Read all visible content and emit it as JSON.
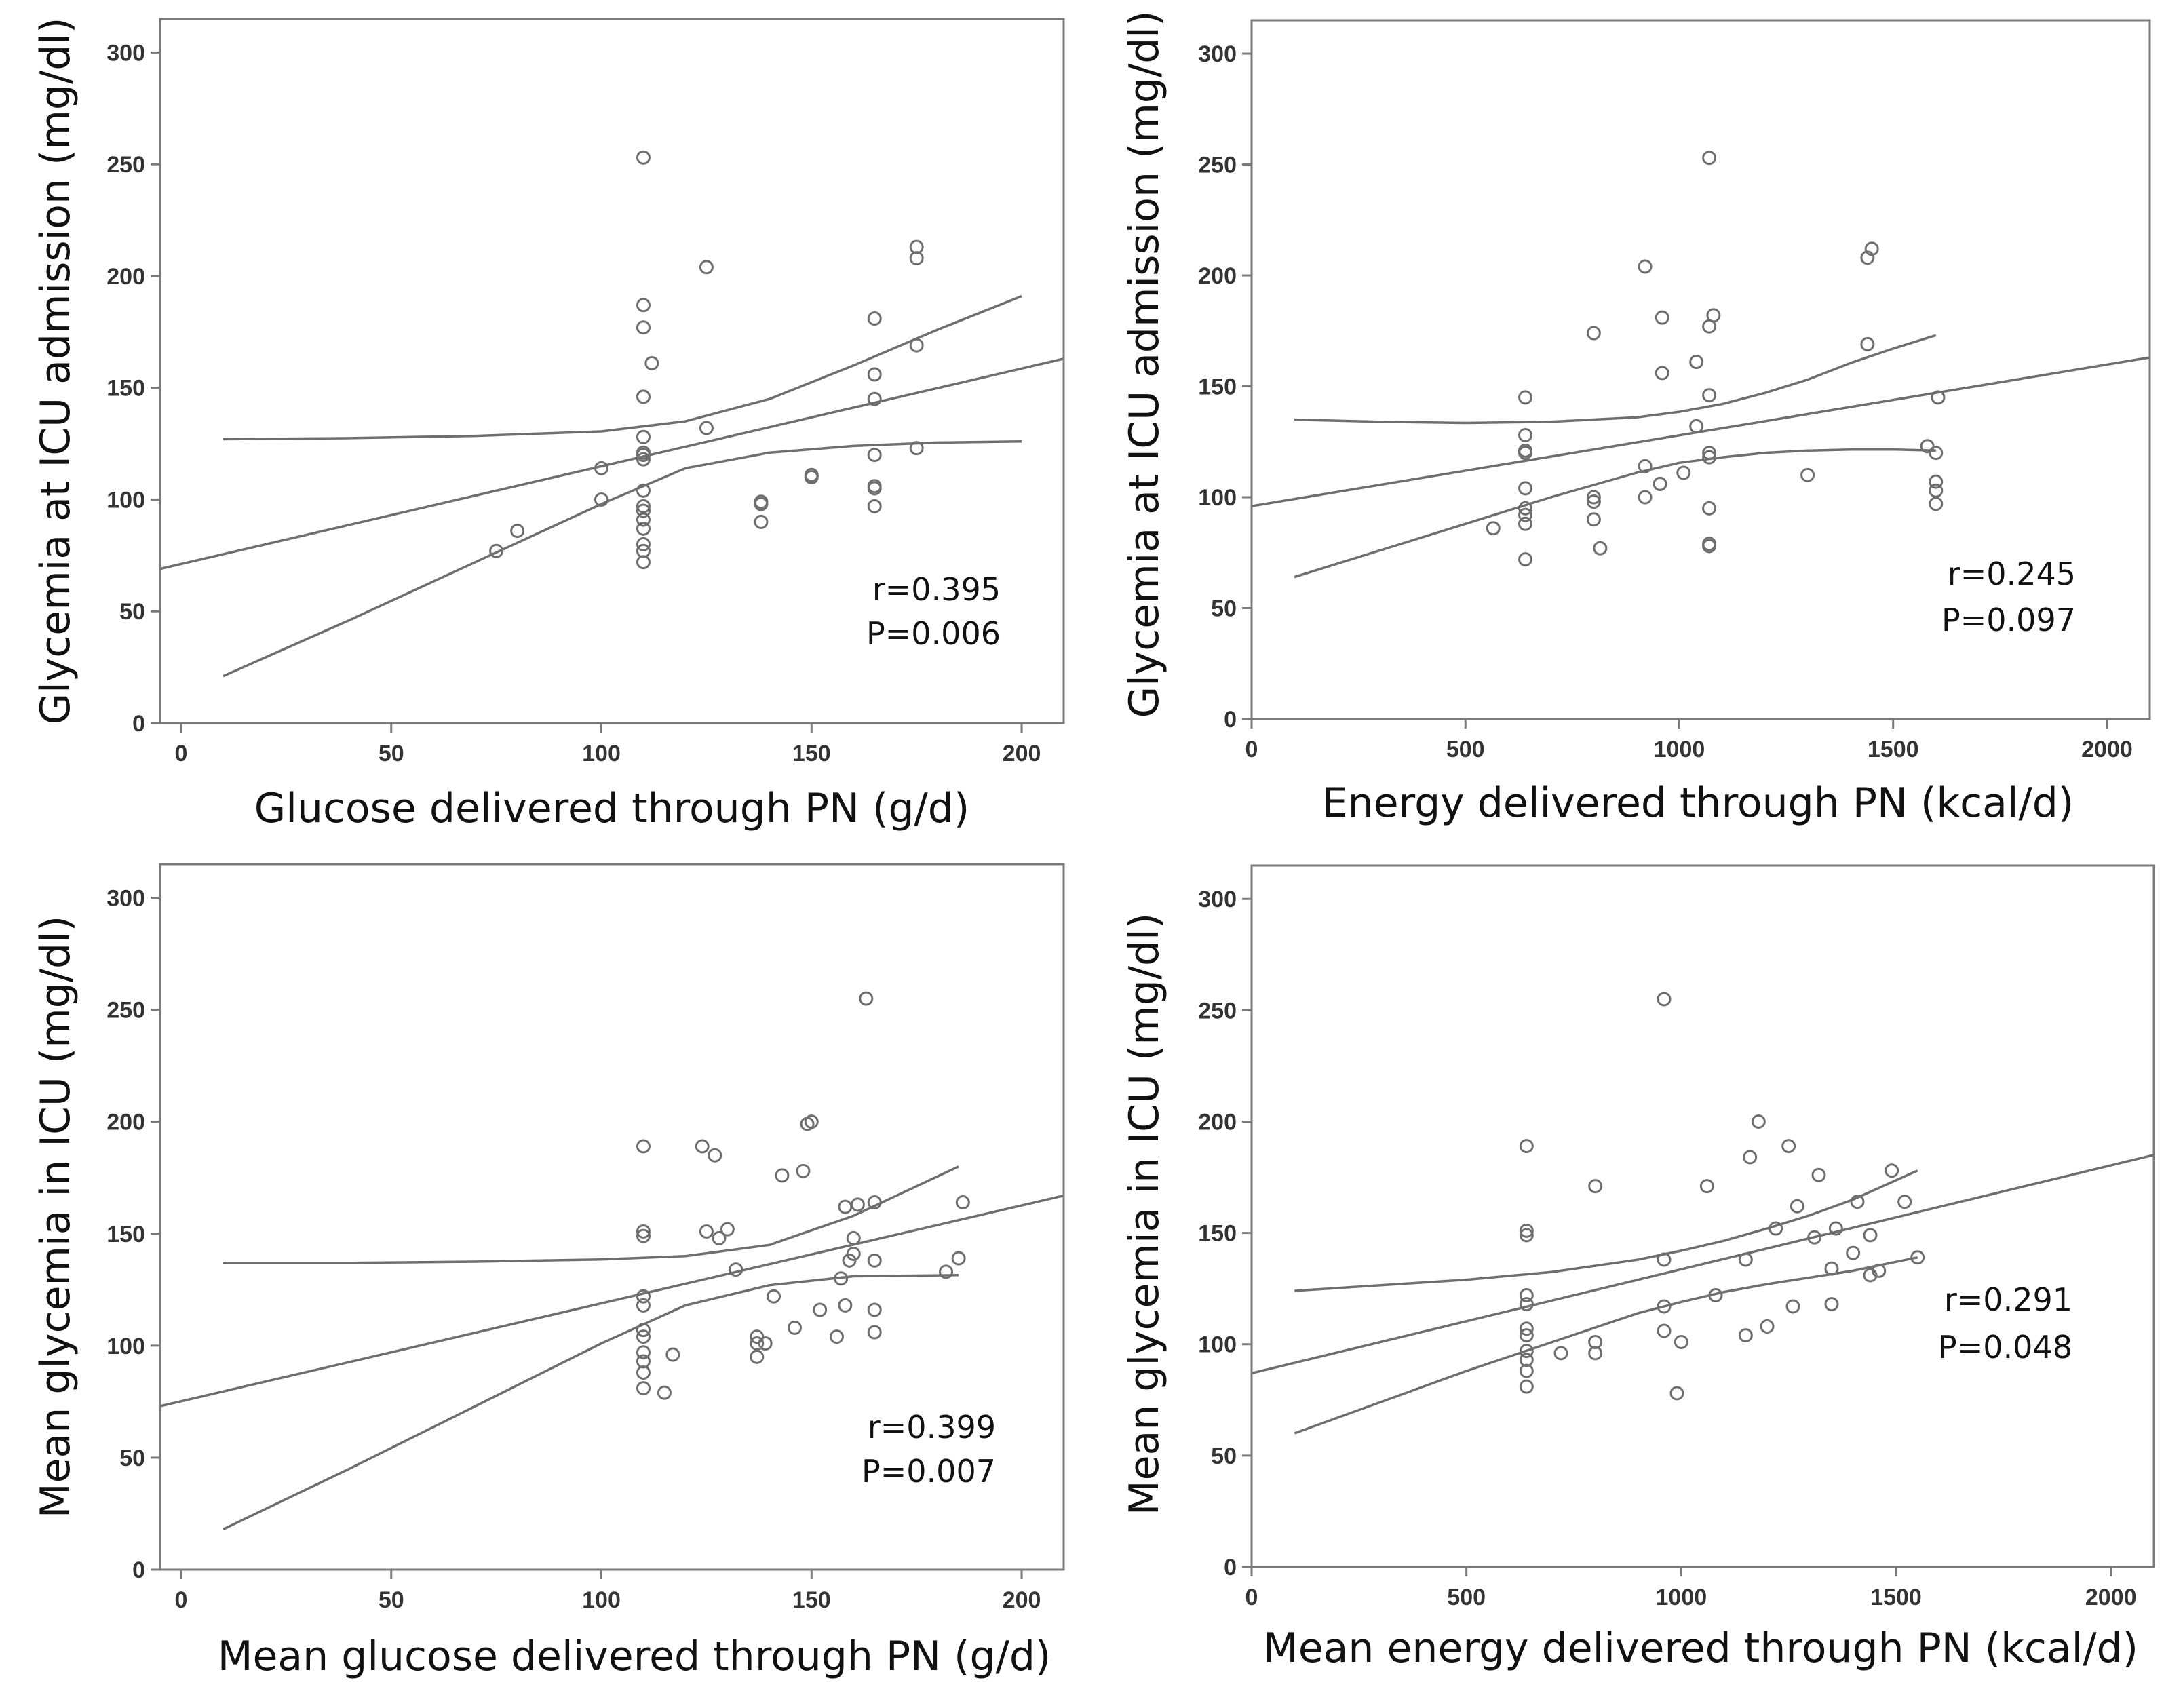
{
  "figure": {
    "background": "#ffffff",
    "mark_color": "#6e6e6e",
    "frame_color": "#7a7a7a",
    "text_color": "#111111"
  },
  "chart_data": [
    {
      "type": "scatter",
      "title": "",
      "xlabel": "Glucose delivered through PN (g/d)",
      "ylabel": "Glycemia at ICU admission (mg/dl)",
      "xlim": [
        -5,
        210
      ],
      "ylim": [
        0,
        315
      ],
      "xticks": [
        "0",
        "50",
        "100",
        "150",
        "200"
      ],
      "yticks": [
        "0",
        "50",
        "100",
        "150",
        "200",
        "250",
        "300"
      ],
      "x": [
        75,
        80,
        100,
        100,
        110,
        110,
        110,
        110,
        110,
        110,
        110,
        110,
        110,
        110,
        110,
        110,
        110,
        110,
        110,
        110,
        110,
        112,
        125,
        125,
        138,
        138,
        138,
        150,
        150,
        165,
        165,
        165,
        165,
        165,
        165,
        165,
        175,
        175,
        175,
        175
      ],
      "y": [
        77,
        86,
        100,
        114,
        72,
        77,
        80,
        87,
        91,
        95,
        97,
        104,
        118,
        120,
        121,
        128,
        146,
        146,
        177,
        187,
        253,
        161,
        132,
        204,
        90,
        98,
        99,
        110,
        111,
        97,
        105,
        106,
        120,
        145,
        156,
        181,
        123,
        169,
        208,
        213
      ],
      "fit_line": {
        "x": [
          -5,
          210
        ],
        "y": [
          69,
          163
        ]
      },
      "ci_upper": {
        "x": [
          10,
          40,
          70,
          100,
          120,
          140,
          160,
          180,
          200
        ],
        "y": [
          127,
          127.5,
          128.5,
          130.5,
          135,
          145,
          160,
          176,
          191
        ]
      },
      "ci_lower": {
        "x": [
          10,
          40,
          70,
          100,
          120,
          140,
          160,
          180,
          200
        ],
        "y": [
          21,
          46,
          72,
          98,
          114,
          121,
          124,
          125.5,
          126
        ]
      },
      "annotations": [
        "r=0.395",
        "P=0.006"
      ]
    },
    {
      "type": "scatter",
      "title": "",
      "xlabel": "Energy delivered through PN (kcal/d)",
      "ylabel": "Glycemia at ICU admission (mg/dl)",
      "xlim": [
        0,
        2100
      ],
      "ylim": [
        0,
        315
      ],
      "xticks": [
        "0",
        "500",
        "1000",
        "1500",
        "2000"
      ],
      "yticks": [
        "0",
        "50",
        "100",
        "150",
        "200",
        "250",
        "300"
      ],
      "x": [
        565,
        640,
        640,
        640,
        640,
        640,
        640,
        640,
        640,
        640,
        800,
        800,
        800,
        800,
        815,
        920,
        920,
        920,
        955,
        955,
        960,
        960,
        1010,
        1040,
        1040,
        1070,
        1070,
        1070,
        1070,
        1070,
        1070,
        1070,
        1070,
        1080,
        1300,
        1440,
        1440,
        1450,
        1580,
        1600,
        1600,
        1600,
        1600
      ],
      "y": [
        86,
        72,
        88,
        92,
        95,
        104,
        120,
        121,
        128,
        145,
        90,
        98,
        100,
        174,
        77,
        100,
        114,
        204,
        106,
        106,
        156,
        181,
        111,
        132,
        161,
        78,
        79,
        95,
        118,
        120,
        146,
        177,
        253,
        182,
        110,
        169,
        208,
        212,
        123,
        97,
        103,
        107,
        120
      ],
      "extra_points": [
        {
          "x": 1605,
          "y": 145
        }
      ],
      "fit_line": {
        "x": [
          0,
          2100
        ],
        "y": [
          96,
          163
        ]
      },
      "ci_upper": {
        "x": [
          100,
          300,
          500,
          700,
          900,
          1000,
          1100,
          1200,
          1300,
          1400,
          1500,
          1600
        ],
        "y": [
          135,
          134,
          133.5,
          134,
          136,
          138.5,
          142,
          147,
          153,
          160.5,
          167,
          173
        ]
      },
      "ci_lower": {
        "x": [
          100,
          300,
          500,
          700,
          900,
          1000,
          1100,
          1200,
          1300,
          1400,
          1500,
          1600
        ],
        "y": [
          64,
          76,
          88,
          100,
          111,
          115.5,
          118,
          120,
          121,
          121.5,
          121.5,
          121
        ]
      },
      "annotations": [
        "r=0.245",
        "P=0.097"
      ]
    },
    {
      "type": "scatter",
      "title": "",
      "xlabel": "Mean glucose delivered through PN (g/d)",
      "ylabel": "Mean glycemia in ICU (mg/dl)",
      "xlim": [
        -5,
        210
      ],
      "ylim": [
        0,
        315
      ],
      "xticks": [
        "0",
        "50",
        "100",
        "150",
        "200"
      ],
      "yticks": [
        "0",
        "50",
        "100",
        "150",
        "200",
        "250",
        "300"
      ],
      "x": [
        110,
        110,
        110,
        110,
        110,
        110,
        110,
        110,
        110,
        110,
        110,
        115,
        117,
        124,
        125,
        127,
        128,
        130,
        132,
        137,
        137,
        137,
        139,
        141,
        143,
        146,
        148,
        149,
        150,
        152,
        156,
        157,
        158,
        158,
        159,
        160,
        160,
        161,
        163,
        165,
        165,
        165,
        165,
        182,
        185,
        186
      ],
      "y": [
        81,
        88,
        93,
        97,
        104,
        107,
        118,
        122,
        149,
        151,
        189,
        79,
        96,
        189,
        151,
        185,
        148,
        152,
        134,
        95,
        101,
        104,
        101,
        122,
        176,
        108,
        178,
        199,
        200,
        116,
        104,
        130,
        118,
        162,
        138,
        141,
        148,
        163,
        255,
        106,
        116,
        138,
        164,
        133,
        139,
        164
      ],
      "fit_line": {
        "x": [
          -5,
          210
        ],
        "y": [
          73,
          167
        ]
      },
      "ci_upper": {
        "x": [
          10,
          40,
          70,
          100,
          120,
          140,
          160,
          185
        ],
        "y": [
          137,
          137,
          137.5,
          138.5,
          140,
          145,
          158,
          180
        ]
      },
      "ci_lower": {
        "x": [
          10,
          40,
          70,
          100,
          120,
          140,
          160,
          185
        ],
        "y": [
          18,
          45,
          73,
          101,
          118,
          127,
          131,
          131.5
        ]
      },
      "annotations": [
        "r=0.399",
        "P=0.007"
      ]
    },
    {
      "type": "scatter",
      "title": "",
      "xlabel": "Mean energy delivered through PN (kcal/d)",
      "ylabel": "Mean glycemia in ICU (mg/dl)",
      "xlim": [
        0,
        2100
      ],
      "ylim": [
        0,
        315
      ],
      "xticks": [
        "0",
        "500",
        "1000",
        "1500",
        "2000"
      ],
      "yticks": [
        "0",
        "50",
        "100",
        "150",
        "200",
        "250",
        "300"
      ],
      "x": [
        640,
        640,
        640,
        640,
        640,
        640,
        640,
        640,
        640,
        640,
        640,
        720,
        800,
        800,
        800,
        960,
        960,
        960,
        960,
        990,
        1000,
        1060,
        1080,
        1150,
        1150,
        1160,
        1180,
        1200,
        1220,
        1250,
        1260,
        1270,
        1310,
        1320,
        1350,
        1350,
        1360,
        1400,
        1410,
        1440,
        1440,
        1460,
        1490,
        1520,
        1550
      ],
      "y": [
        81,
        88,
        93,
        97,
        104,
        107,
        118,
        122,
        149,
        151,
        189,
        96,
        96,
        101,
        171,
        106,
        117,
        138,
        255,
        78,
        101,
        171,
        122,
        104,
        138,
        184,
        200,
        108,
        152,
        189,
        117,
        162,
        148,
        176,
        118,
        134,
        152,
        141,
        164,
        131,
        149,
        133,
        178,
        164,
        139
      ],
      "fit_line": {
        "x": [
          0,
          2100
        ],
        "y": [
          87,
          185
        ]
      },
      "ci_upper": {
        "x": [
          100,
          300,
          500,
          700,
          900,
          1000,
          1100,
          1200,
          1300,
          1400,
          1550
        ],
        "y": [
          124,
          126.5,
          129,
          132.5,
          138,
          142,
          146.5,
          152,
          158,
          165,
          178
        ]
      },
      "ci_lower": {
        "x": [
          100,
          300,
          500,
          700,
          900,
          1000,
          1100,
          1200,
          1300,
          1400,
          1550
        ],
        "y": [
          60,
          74,
          88,
          101,
          114,
          119,
          123.5,
          127,
          130,
          133,
          139
        ]
      },
      "annotations": [
        "r=0.291",
        "P=0.048"
      ]
    }
  ]
}
